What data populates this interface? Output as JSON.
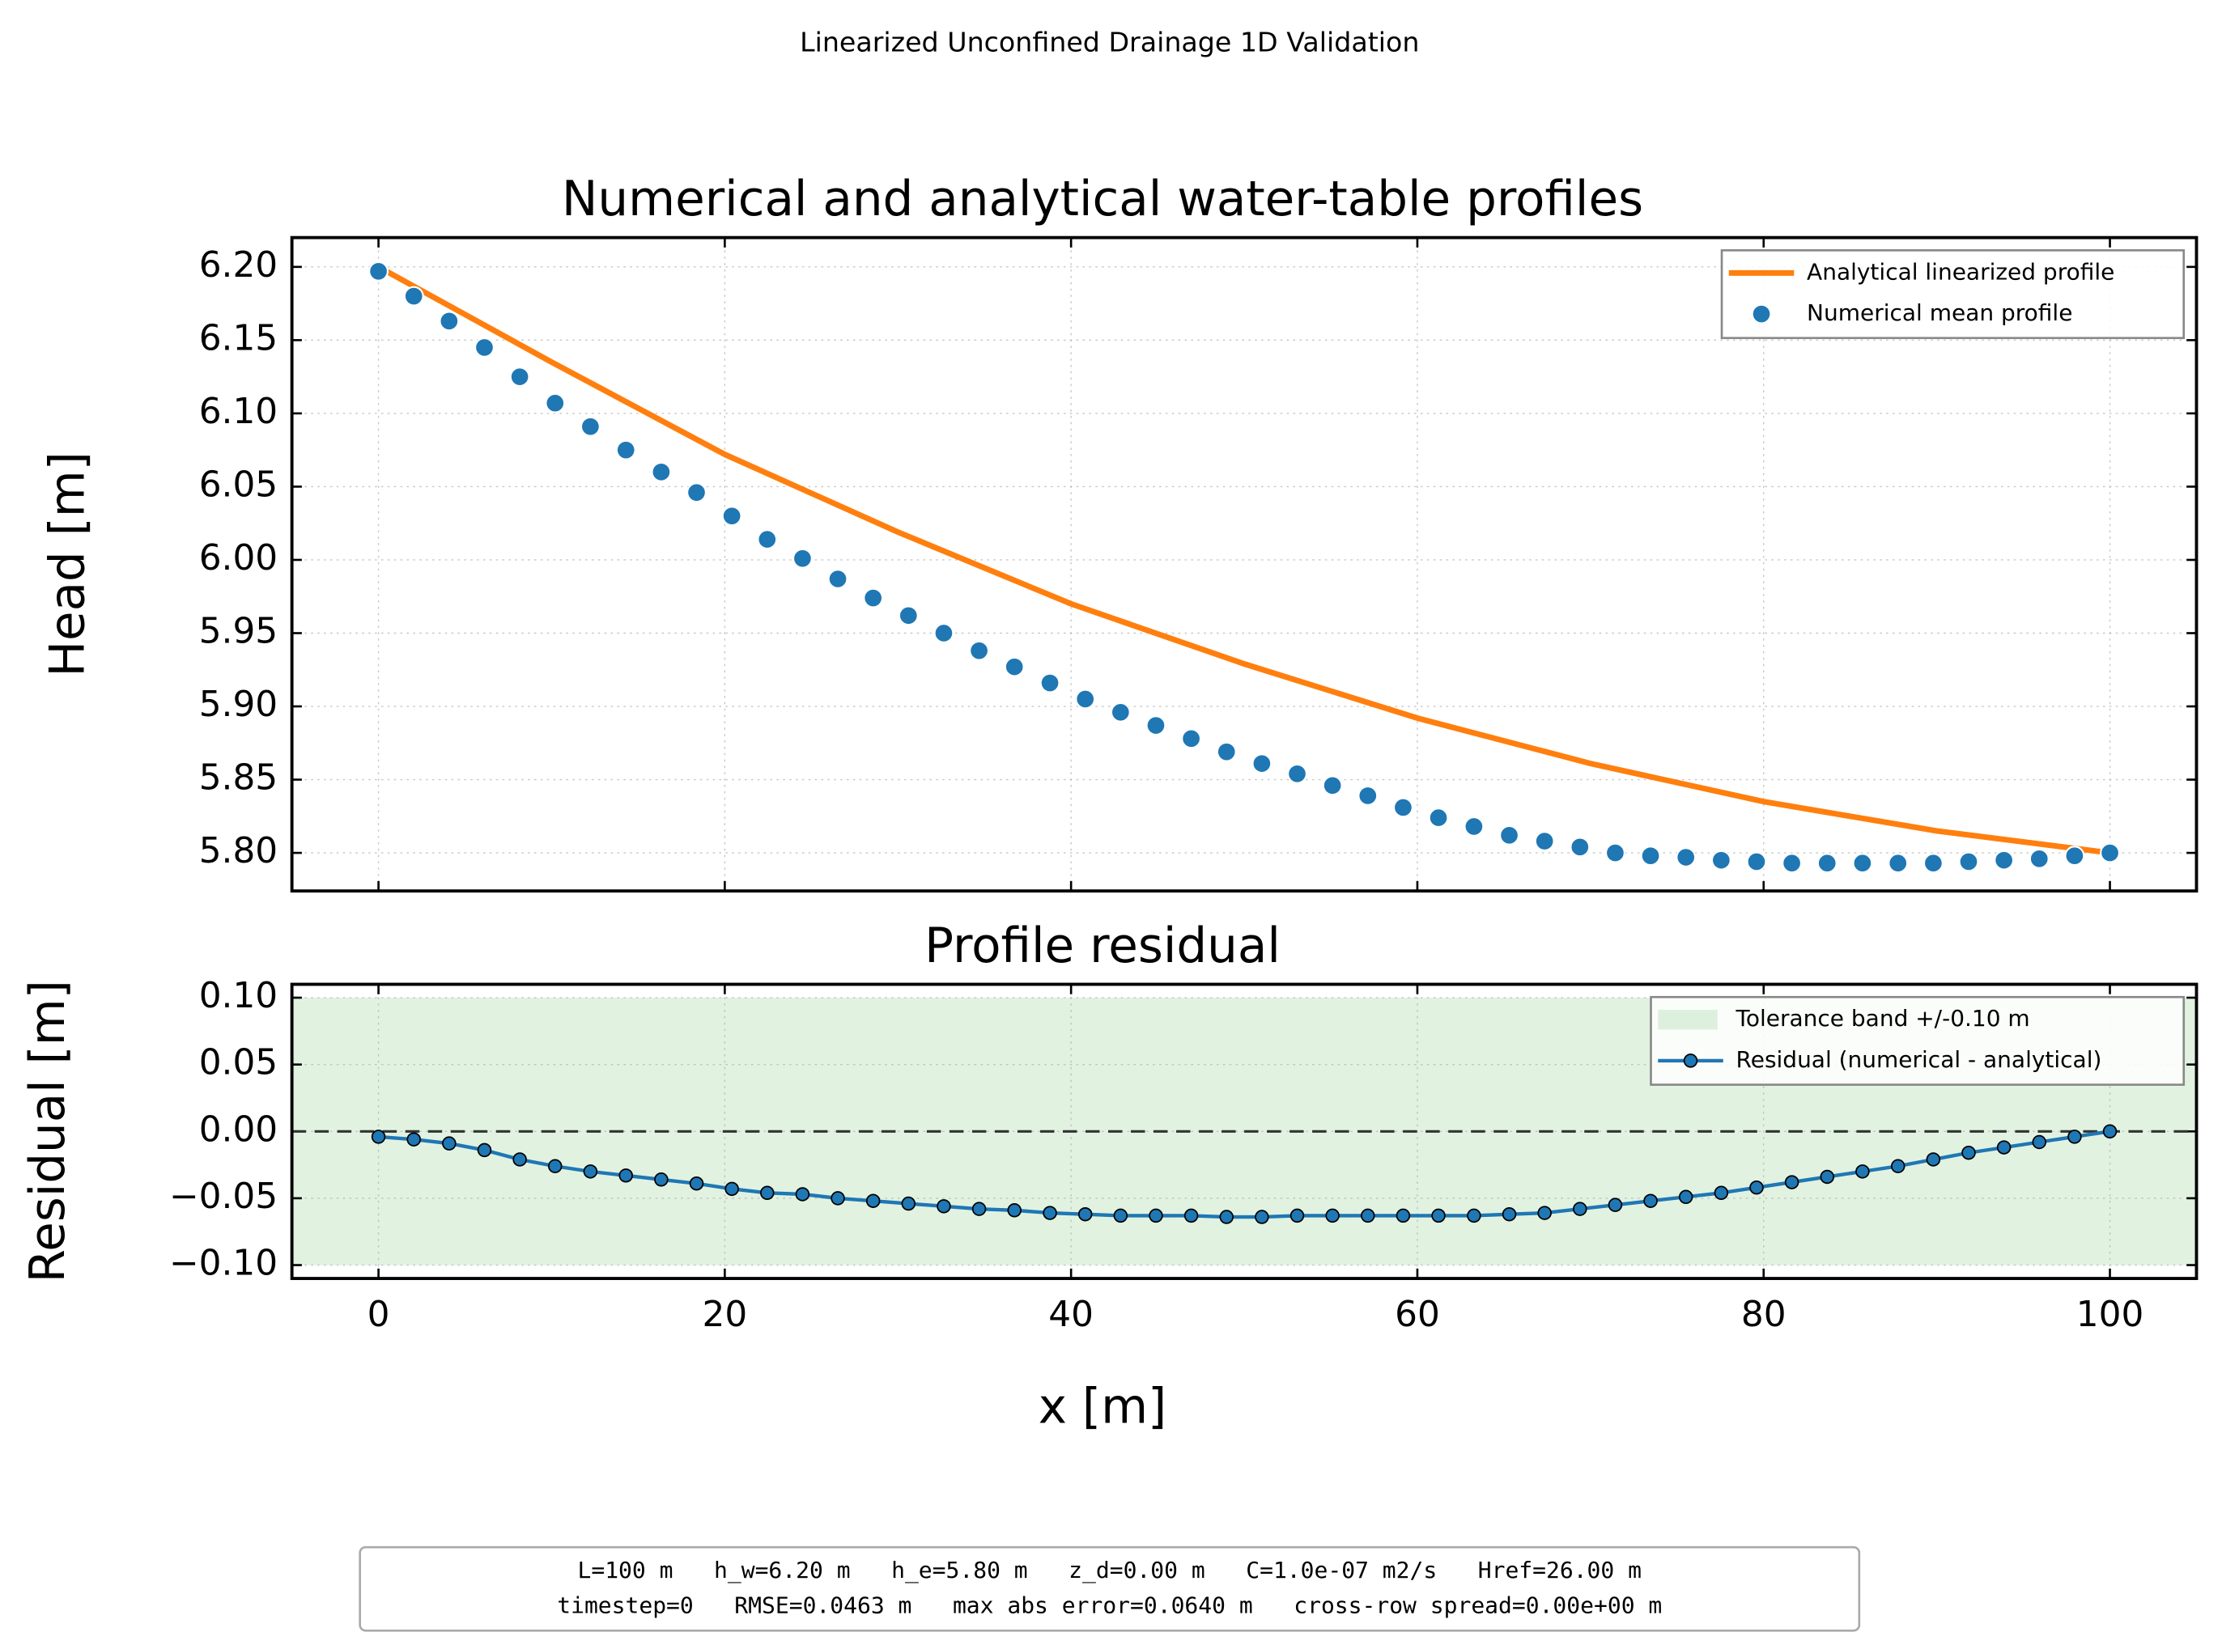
{
  "title": "Linearized Unconfined Drainage 1D Validation",
  "chart_data": [
    {
      "type": "line",
      "title": "Numerical and analytical water-table profiles",
      "ylabel": "Head [m]",
      "xlim": [
        -5,
        105
      ],
      "ylim": [
        5.774,
        6.22
      ],
      "xticks": [
        0,
        20,
        40,
        60,
        80,
        100
      ],
      "yticks": [
        {
          "value": 5.8,
          "label": "5.80"
        },
        5.85,
        {
          "value": 5.9,
          "label": "5.90"
        },
        5.95,
        {
          "value": 6.0,
          "label": "6.00"
        },
        6.05,
        {
          "value": 6.1,
          "label": "6.10"
        },
        6.15,
        {
          "value": 6.2,
          "label": "6.20"
        }
      ],
      "grid": true,
      "legend": "upper right",
      "series": [
        {
          "name": "Analytical linearized profile",
          "type": "line",
          "color": "#ff7f0e",
          "x": [
            0,
            10,
            20,
            30,
            40,
            50,
            60,
            70,
            80,
            90,
            100
          ],
          "values": [
            6.2,
            6.135,
            6.072,
            6.019,
            5.97,
            5.929,
            5.892,
            5.861,
            5.835,
            5.815,
            5.8
          ]
        },
        {
          "name": "Numerical mean profile",
          "type": "scatter",
          "color": "#1f77b4",
          "x": [
            0,
            2.04,
            4.08,
            6.12,
            8.16,
            10.2,
            12.24,
            14.29,
            16.33,
            18.37,
            20.41,
            22.45,
            24.49,
            26.53,
            28.57,
            30.61,
            32.65,
            34.69,
            36.73,
            38.78,
            40.82,
            42.86,
            44.9,
            46.94,
            48.98,
            51.02,
            53.06,
            55.1,
            57.14,
            59.18,
            61.22,
            63.27,
            65.31,
            67.35,
            69.39,
            71.43,
            73.47,
            75.51,
            77.55,
            79.59,
            81.63,
            83.67,
            85.71,
            87.76,
            89.8,
            91.84,
            93.88,
            95.92,
            97.96,
            100
          ],
          "values": [
            6.197,
            6.18,
            6.163,
            6.145,
            6.125,
            6.107,
            6.091,
            6.075,
            6.06,
            6.046,
            6.03,
            6.014,
            6.001,
            5.987,
            5.974,
            5.962,
            5.95,
            5.938,
            5.927,
            5.916,
            5.905,
            5.896,
            5.887,
            5.878,
            5.869,
            5.861,
            5.854,
            5.846,
            5.839,
            5.831,
            5.824,
            5.818,
            5.812,
            5.808,
            5.804,
            5.8,
            5.798,
            5.797,
            5.795,
            5.794,
            5.793,
            5.793,
            5.793,
            5.793,
            5.793,
            5.794,
            5.795,
            5.796,
            5.798,
            5.8
          ]
        }
      ]
    },
    {
      "type": "line",
      "title": "Profile residual",
      "xlabel": "x [m]",
      "ylabel": "Residual [m]",
      "xlim": [
        -5,
        105
      ],
      "ylim": [
        -0.11,
        0.11
      ],
      "xticks": [
        0,
        20,
        40,
        60,
        80,
        100
      ],
      "yticks": [
        {
          "value": -0.1,
          "label": "−0.10"
        },
        {
          "value": -0.05,
          "label": "−0.05"
        },
        {
          "value": 0,
          "label": "0.00"
        },
        0.05,
        {
          "value": 0.1,
          "label": "0.10"
        }
      ],
      "grid": true,
      "legend": "upper right",
      "reference_line": 0,
      "series": [
        {
          "name": "Tolerance band +/-0.10 m",
          "type": "band",
          "color": "#2ca02c",
          "values": [
            -0.1,
            0.1
          ]
        },
        {
          "name": "Residual (numerical - analytical)",
          "type": "line",
          "marker": true,
          "color": "#1f77b4",
          "x": [
            0,
            2.04,
            4.08,
            6.12,
            8.16,
            10.2,
            12.24,
            14.29,
            16.33,
            18.37,
            20.41,
            22.45,
            24.49,
            26.53,
            28.57,
            30.61,
            32.65,
            34.69,
            36.73,
            38.78,
            40.82,
            42.86,
            44.9,
            46.94,
            48.98,
            51.02,
            53.06,
            55.1,
            57.14,
            59.18,
            61.22,
            63.27,
            65.31,
            67.35,
            69.39,
            71.43,
            73.47,
            75.51,
            77.55,
            79.59,
            81.63,
            83.67,
            85.71,
            87.76,
            89.8,
            91.84,
            93.88,
            95.92,
            97.96,
            100
          ],
          "values": [
            -0.004,
            -0.006,
            -0.009,
            -0.014,
            -0.021,
            -0.026,
            -0.03,
            -0.033,
            -0.036,
            -0.039,
            -0.043,
            -0.046,
            -0.047,
            -0.05,
            -0.052,
            -0.054,
            -0.056,
            -0.058,
            -0.059,
            -0.061,
            -0.062,
            -0.063,
            -0.063,
            -0.063,
            -0.064,
            -0.064,
            -0.063,
            -0.063,
            -0.063,
            -0.063,
            -0.063,
            -0.063,
            -0.062,
            -0.061,
            -0.058,
            -0.055,
            -0.052,
            -0.049,
            -0.046,
            -0.042,
            -0.038,
            -0.034,
            -0.03,
            -0.026,
            -0.021,
            -0.016,
            -0.012,
            -0.008,
            -0.004,
            0.0
          ]
        }
      ]
    }
  ],
  "footer": [
    "L=100 m   h_w=6.20 m   h_e=5.80 m   z_d=0.00 m   C=1.0e-07 m2/s   Href=26.00 m",
    "timestep=0   RMSE=0.0463 m   max abs error=0.0640 m   cross-row spread=0.00e+00 m"
  ]
}
